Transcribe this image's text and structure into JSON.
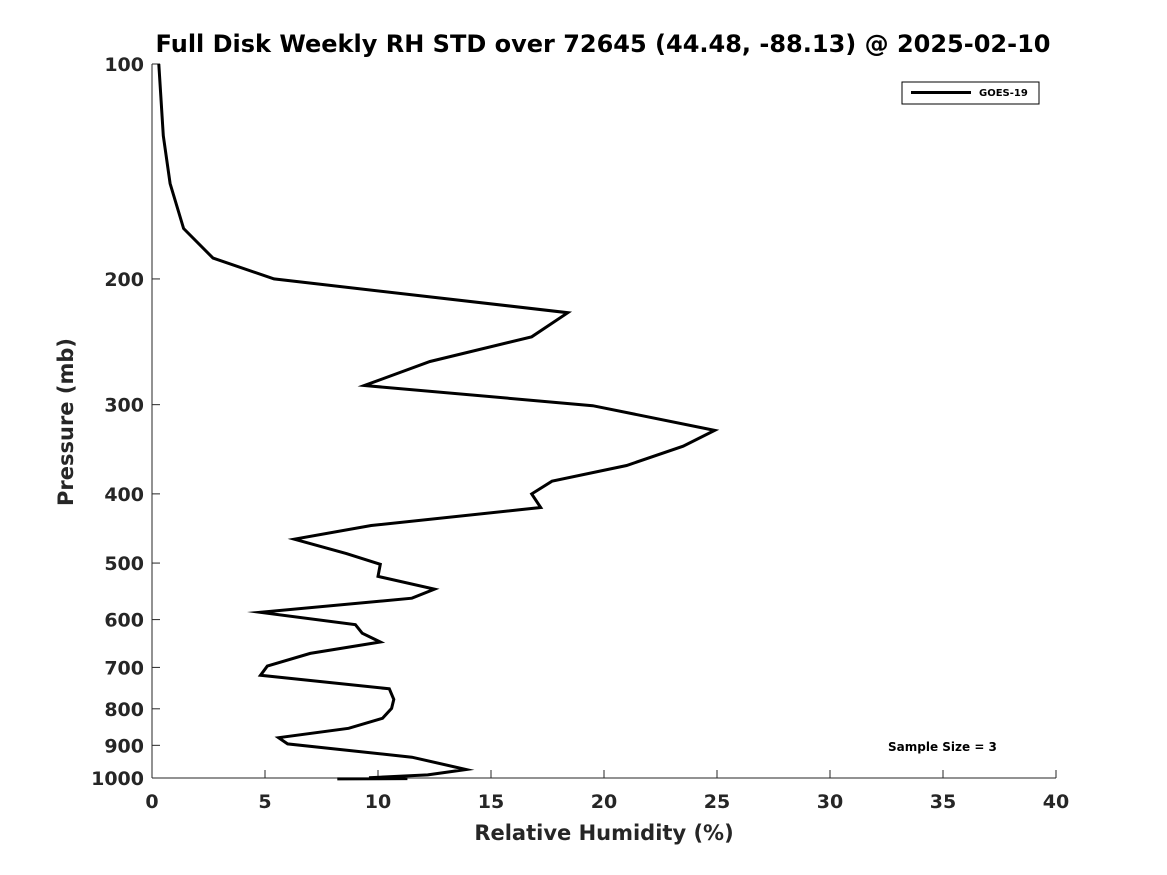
{
  "chart_data": {
    "type": "line",
    "title": "Full Disk Weekly RH STD over 72645 (44.48, -88.13) @ 2025-02-10",
    "xlabel": "Relative Humidity (%)",
    "ylabel": "Pressure (mb)",
    "xlim": [
      0,
      40
    ],
    "ylim": [
      100,
      1000
    ],
    "y_scale": "log",
    "y_reversed": true,
    "x_ticks": [
      0,
      5,
      10,
      15,
      20,
      25,
      30,
      35,
      40
    ],
    "y_ticks": [
      100,
      200,
      300,
      400,
      500,
      600,
      700,
      800,
      900,
      1000
    ],
    "grid": false,
    "legend_position": "top-right",
    "annotation": "Sample Size = 3",
    "series": [
      {
        "name": "GOES-19",
        "color": "#000000",
        "x": [
          0.3,
          0.5,
          0.8,
          1.4,
          2.7,
          5.4,
          18.4,
          16.8,
          12.3,
          9.4,
          19.5,
          24.9,
          23.5,
          21.0,
          17.7,
          16.8,
          17.2,
          9.7,
          6.3,
          8.6,
          10.1,
          10.0,
          12.5,
          11.5,
          4.8,
          9.0,
          9.3,
          10.1,
          7.0,
          5.1,
          4.8,
          10.5,
          10.7,
          10.6,
          10.2,
          8.7,
          5.6,
          6.0,
          11.5,
          13.9,
          12.2,
          9.6,
          10.9,
          11.3,
          8.2
        ],
        "y": [
          100,
          126,
          147,
          170,
          187,
          200,
          223,
          241,
          261,
          282,
          301,
          326,
          343,
          365,
          384,
          400,
          418,
          443,
          463,
          485,
          502,
          522,
          544,
          560,
          586,
          610,
          627,
          645,
          669,
          697,
          718,
          750,
          776,
          799,
          825,
          852,
          878,
          896,
          935,
          973,
          990,
          999,
          1001,
          1002,
          1003
        ]
      }
    ]
  }
}
